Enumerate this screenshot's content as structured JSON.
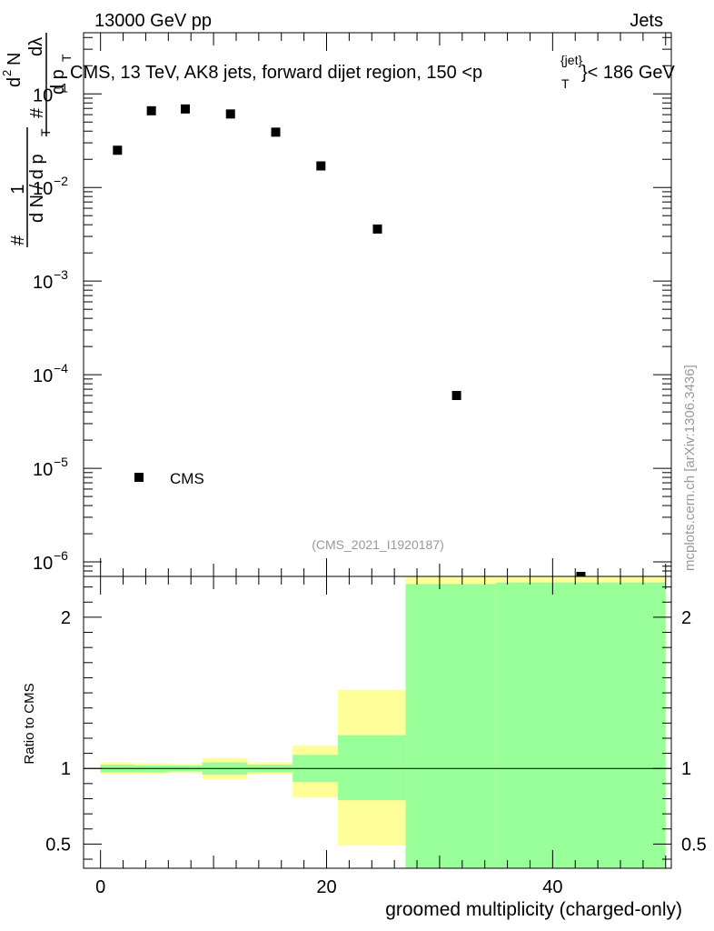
{
  "header": {
    "energy_label": "13000 GeV pp",
    "category_label": "Jets",
    "watermark": "mcplots.cern.ch [arXiv:1306.3436]",
    "analysis_id": "(CMS_2021_I1920187)"
  },
  "chart_data": [
    {
      "type": "scatter",
      "panel": "main",
      "title": "CMS, 13 TeV, AK8 jets, forward dijet region, 150 <p_T^{jet}< 186 GeV",
      "title_parts": {
        "pre": "CMS, 13 TeV, AK8 jets, forward dijet region, 150 <p",
        "sup": "{jet}",
        "sub": "T",
        "post": "}< 186 GeV"
      },
      "ylabel_parts": {
        "one": "1",
        "hash": "#",
        "denominator": "d N / d p",
        "sub_t": "T",
        "hash2": "#",
        "numerator": "d",
        "exp": "2",
        "n_letter": "N",
        "dpt": "d p",
        "dlambda": "dλ"
      },
      "yscale": "log",
      "ylim": [
        7e-07,
        0.45
      ],
      "y_ticks": [
        {
          "value": 1e-06,
          "base": "10",
          "exp": "−6"
        },
        {
          "value": 1e-05,
          "base": "10",
          "exp": "−5"
        },
        {
          "value": 0.0001,
          "base": "10",
          "exp": "−4"
        },
        {
          "value": 0.001,
          "base": "10",
          "exp": "−3"
        },
        {
          "value": 0.01,
          "base": "10",
          "exp": "−2"
        },
        {
          "value": 0.1,
          "base": "10",
          "exp": "−1"
        }
      ],
      "xlim": [
        -1.5,
        50.5
      ],
      "series": [
        {
          "name": "CMS",
          "marker": "square",
          "color": "#000000",
          "x": [
            1.5,
            4.5,
            7.5,
            11.5,
            15.5,
            19.5,
            24.5,
            31.5,
            42.5
          ],
          "y": [
            0.025,
            0.066,
            0.069,
            0.061,
            0.039,
            0.017,
            0.0036,
            6e-05,
            7e-07
          ]
        }
      ],
      "legend": {
        "position": "bottom-left",
        "entries": [
          "CMS"
        ]
      }
    },
    {
      "type": "area",
      "panel": "ratio",
      "ylabel": "Ratio to CMS",
      "xlabel": "groomed multiplicity (charged-only)",
      "ylim": [
        0.34,
        2.27
      ],
      "y_ticks": [
        0.5,
        1,
        2
      ],
      "y_tick_labels": [
        "0.5",
        "1",
        "2"
      ],
      "xlim": [
        -1.5,
        50.5
      ],
      "x_ticks": [
        0,
        20,
        40
      ],
      "x_tick_labels": [
        "0",
        "20",
        "40"
      ],
      "reference_line": 1,
      "colors": {
        "outer_band": "#ffff99",
        "inner_band": "#99ff99"
      },
      "bins": [
        {
          "lo": 0,
          "hi": 3,
          "outer": [
            0.96,
            1.04
          ],
          "inner": [
            0.975,
            1.025
          ]
        },
        {
          "lo": 3,
          "hi": 6,
          "outer": [
            0.965,
            1.035
          ],
          "inner": [
            0.975,
            1.02
          ]
        },
        {
          "lo": 6,
          "hi": 9,
          "outer": [
            0.97,
            1.03
          ],
          "inner": [
            0.98,
            1.02
          ]
        },
        {
          "lo": 9,
          "hi": 13,
          "outer": [
            0.93,
            1.07
          ],
          "inner": [
            0.96,
            1.04
          ]
        },
        {
          "lo": 13,
          "hi": 17,
          "outer": [
            0.96,
            1.04
          ],
          "inner": [
            0.975,
            1.025
          ]
        },
        {
          "lo": 17,
          "hi": 21,
          "outer": [
            0.81,
            1.15
          ],
          "inner": [
            0.91,
            1.09
          ]
        },
        {
          "lo": 21,
          "hi": 27,
          "outer": [
            0.49,
            1.52
          ],
          "inner": [
            0.79,
            1.22
          ]
        },
        {
          "lo": 27,
          "hi": 35,
          "outer": [
            0.34,
            2.27
          ],
          "inner": [
            0.34,
            2.22
          ]
        },
        {
          "lo": 35,
          "hi": 50,
          "outer": [
            0.34,
            2.27
          ],
          "inner": [
            0.34,
            2.23
          ]
        }
      ]
    }
  ]
}
